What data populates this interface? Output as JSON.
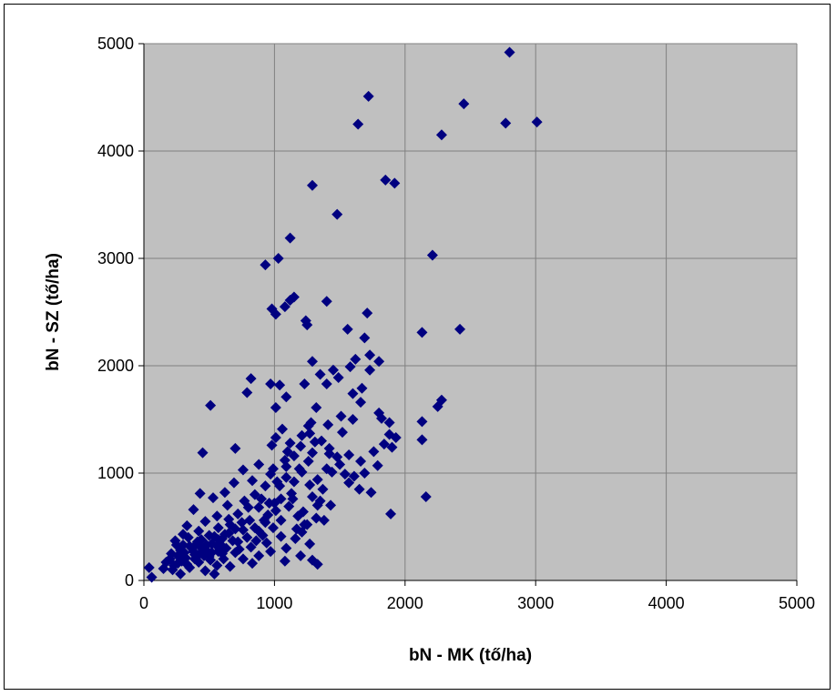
{
  "chart_data": {
    "type": "scatter",
    "xlabel": "bN - MK (tő/ha)",
    "ylabel": "bN - SZ (tő/ha)",
    "xlim": [
      0,
      5000
    ],
    "ylim": [
      0,
      5000
    ],
    "xticks": [
      "0",
      "1000",
      "2000",
      "3000",
      "4000",
      "5000"
    ],
    "yticks": [
      "0",
      "1000",
      "2000",
      "3000",
      "4000",
      "5000"
    ],
    "grid": true,
    "legend": "none",
    "colors": {
      "plot_bg": "#c0c0c0",
      "marker": "#000080",
      "grid": "#808080"
    },
    "series": [
      {
        "marker": "diamond",
        "points": [
          [
            2800,
            4920
          ],
          [
            1720,
            4510
          ],
          [
            2450,
            4440
          ],
          [
            3010,
            4270
          ],
          [
            2770,
            4260
          ],
          [
            1640,
            4250
          ],
          [
            2280,
            4150
          ],
          [
            1850,
            3730
          ],
          [
            1920,
            3700
          ],
          [
            1290,
            3680
          ],
          [
            1480,
            3410
          ],
          [
            1120,
            3190
          ],
          [
            2210,
            3030
          ],
          [
            1030,
            3000
          ],
          [
            930,
            2940
          ],
          [
            1150,
            2640
          ],
          [
            1120,
            2610
          ],
          [
            1080,
            2550
          ],
          [
            980,
            2530
          ],
          [
            1010,
            2480
          ],
          [
            1400,
            2600
          ],
          [
            1710,
            2490
          ],
          [
            1240,
            2420
          ],
          [
            1560,
            2340
          ],
          [
            2420,
            2340
          ],
          [
            1250,
            2380
          ],
          [
            2130,
            2310
          ],
          [
            1690,
            2260
          ],
          [
            1730,
            2100
          ],
          [
            1620,
            2060
          ],
          [
            1800,
            2040
          ],
          [
            1290,
            2040
          ],
          [
            1580,
            1990
          ],
          [
            1730,
            1960
          ],
          [
            1450,
            1960
          ],
          [
            1350,
            1920
          ],
          [
            1490,
            1890
          ],
          [
            820,
            1880
          ],
          [
            970,
            1830
          ],
          [
            1040,
            1820
          ],
          [
            1230,
            1830
          ],
          [
            1400,
            1830
          ],
          [
            1670,
            1790
          ],
          [
            790,
            1750
          ],
          [
            1600,
            1740
          ],
          [
            1090,
            1710
          ],
          [
            2280,
            1680
          ],
          [
            2250,
            1620
          ],
          [
            510,
            1630
          ],
          [
            1660,
            1660
          ],
          [
            1800,
            1560
          ],
          [
            1010,
            1610
          ],
          [
            1320,
            1610
          ],
          [
            1510,
            1530
          ],
          [
            1820,
            1510
          ],
          [
            1600,
            1500
          ],
          [
            1880,
            1470
          ],
          [
            2130,
            1480
          ],
          [
            1260,
            1440
          ],
          [
            1410,
            1450
          ],
          [
            1060,
            1410
          ],
          [
            1270,
            1370
          ],
          [
            1520,
            1380
          ],
          [
            1880,
            1360
          ],
          [
            1010,
            1330
          ],
          [
            1310,
            1290
          ],
          [
            1120,
            1280
          ],
          [
            1840,
            1270
          ],
          [
            980,
            1260
          ],
          [
            1200,
            1250
          ],
          [
            1420,
            1230
          ],
          [
            1900,
            1240
          ],
          [
            700,
            1230
          ],
          [
            1100,
            1200
          ],
          [
            1290,
            1190
          ],
          [
            450,
            1190
          ],
          [
            1570,
            1170
          ],
          [
            1480,
            1150
          ],
          [
            2130,
            1310
          ],
          [
            1260,
            1110
          ],
          [
            1660,
            1110
          ],
          [
            1790,
            1070
          ],
          [
            880,
            1080
          ],
          [
            1090,
            1060
          ],
          [
            1400,
            1040
          ],
          [
            990,
            1040
          ],
          [
            760,
            1030
          ],
          [
            1210,
            1010
          ],
          [
            1540,
            990
          ],
          [
            1090,
            960
          ],
          [
            1330,
            940
          ],
          [
            830,
            930
          ],
          [
            1020,
            920
          ],
          [
            1570,
            910
          ],
          [
            690,
            910
          ],
          [
            1270,
            890
          ],
          [
            930,
            880
          ],
          [
            1650,
            850
          ],
          [
            1740,
            820
          ],
          [
            1130,
            810
          ],
          [
            850,
            800
          ],
          [
            620,
            820
          ],
          [
            430,
            810
          ],
          [
            1290,
            780
          ],
          [
            1050,
            760
          ],
          [
            530,
            770
          ],
          [
            2160,
            780
          ],
          [
            1350,
            740
          ],
          [
            770,
            740
          ],
          [
            960,
            720
          ],
          [
            1430,
            700
          ],
          [
            640,
            700
          ],
          [
            1110,
            690
          ],
          [
            880,
            680
          ],
          [
            380,
            660
          ],
          [
            1010,
            650
          ],
          [
            1220,
            640
          ],
          [
            1890,
            620
          ],
          [
            720,
            620
          ],
          [
            560,
            600
          ],
          [
            1320,
            580
          ],
          [
            1050,
            560
          ],
          [
            810,
            560
          ],
          [
            1380,
            560
          ],
          [
            930,
            540
          ],
          [
            470,
            550
          ],
          [
            660,
            520
          ],
          [
            1250,
            520
          ],
          [
            330,
            510
          ],
          [
            990,
            490
          ],
          [
            570,
            490
          ],
          [
            1170,
            480
          ],
          [
            760,
            470
          ],
          [
            420,
            460
          ],
          [
            880,
            460
          ],
          [
            1210,
            450
          ],
          [
            650,
            440
          ],
          [
            300,
            430
          ],
          [
            500,
            420
          ],
          [
            1050,
            410
          ],
          [
            790,
            400
          ],
          [
            1160,
            390
          ],
          [
            600,
            390
          ],
          [
            240,
            370
          ],
          [
            410,
            360
          ],
          [
            720,
            360
          ],
          [
            940,
            350
          ],
          [
            1270,
            340
          ],
          [
            520,
            340
          ],
          [
            350,
            320
          ],
          [
            820,
            310
          ],
          [
            630,
            300
          ],
          [
            1090,
            300
          ],
          [
            450,
            290
          ],
          [
            280,
            280
          ],
          [
            970,
            270
          ],
          [
            570,
            270
          ],
          [
            700,
            260
          ],
          [
            210,
            250
          ],
          [
            390,
            240
          ],
          [
            1200,
            230
          ],
          [
            880,
            230
          ],
          [
            500,
            220
          ],
          [
            320,
            210
          ],
          [
            760,
            200
          ],
          [
            610,
            200
          ],
          [
            1290,
            190
          ],
          [
            1080,
            180
          ],
          [
            170,
            170
          ],
          [
            420,
            170
          ],
          [
            260,
            160
          ],
          [
            830,
            160
          ],
          [
            1330,
            150
          ],
          [
            560,
            140
          ],
          [
            660,
            130
          ],
          [
            350,
            120
          ],
          [
            220,
            100
          ],
          [
            470,
            90
          ],
          [
            540,
            60
          ],
          [
            280,
            60
          ],
          [
            40,
            120
          ],
          [
            60,
            30
          ],
          [
            200,
            200
          ],
          [
            310,
            260
          ],
          [
            380,
            310
          ],
          [
            440,
            380
          ],
          [
            480,
            330
          ],
          [
            520,
            260
          ],
          [
            590,
            330
          ],
          [
            620,
            430
          ],
          [
            680,
            370
          ],
          [
            730,
            290
          ],
          [
            860,
            370
          ],
          [
            910,
            420
          ],
          [
            950,
            610
          ],
          [
            1000,
            720
          ],
          [
            1040,
            880
          ],
          [
            1140,
            760
          ],
          [
            1180,
            600
          ],
          [
            1230,
            520
          ],
          [
            1330,
            700
          ],
          [
            1370,
            850
          ],
          [
            1440,
            1010
          ],
          [
            1500,
            1080
          ],
          [
            1610,
            970
          ],
          [
            1690,
            1000
          ],
          [
            1760,
            1200
          ],
          [
            1930,
            1330
          ],
          [
            250,
            330
          ],
          [
            340,
            400
          ],
          [
            390,
            200
          ],
          [
            430,
            250
          ],
          [
            290,
            180
          ],
          [
            150,
            110
          ],
          [
            230,
            140
          ],
          [
            330,
            150
          ],
          [
            460,
            230
          ],
          [
            510,
            190
          ],
          [
            570,
            380
          ],
          [
            750,
            540
          ],
          [
            800,
            680
          ],
          [
            900,
            760
          ],
          [
            970,
            990
          ],
          [
            1150,
            1160
          ],
          [
            1210,
            1350
          ],
          [
            1280,
            1470
          ],
          [
            1360,
            1300
          ],
          [
            1420,
            1180
          ],
          [
            1080,
            1120
          ],
          [
            1150,
            920
          ],
          [
            1190,
            1040
          ],
          [
            650,
            570
          ],
          [
            700,
            480
          ],
          [
            850,
            490
          ],
          [
            920,
            560
          ],
          [
            300,
            330
          ],
          [
            260,
            230
          ],
          [
            380,
            270
          ],
          [
            420,
            330
          ],
          [
            560,
            320
          ],
          [
            600,
            250
          ],
          [
            480,
            280
          ],
          [
            540,
            410
          ]
        ]
      }
    ]
  }
}
